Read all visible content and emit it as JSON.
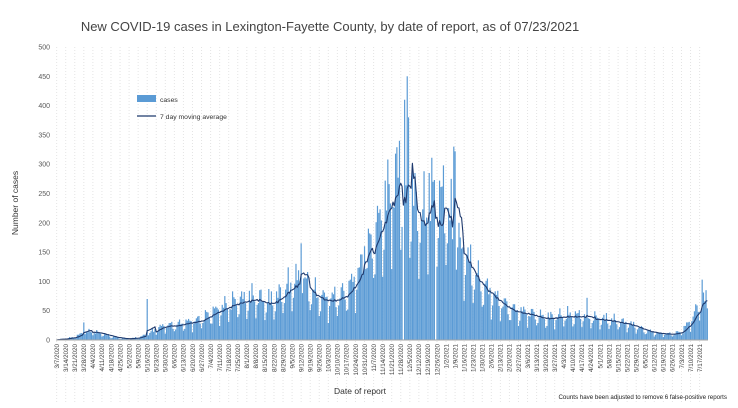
{
  "chart_data": {
    "type": "bar",
    "title": "New COVID-19 cases in Lexington-Fayette County, by date of report, as of 07/23/2021",
    "xlabel": "Date of report",
    "ylabel": "Number of cases",
    "ylim": [
      0,
      500
    ],
    "yticks": [
      0,
      50,
      100,
      150,
      200,
      250,
      300,
      350,
      400,
      450,
      500
    ],
    "grid": false,
    "legend_position": "top-left",
    "footnote": "Counts have been adjusted to remove 6 false-positive reports",
    "x_tick_labels": [
      "3/7/2020",
      "3/14/2020",
      "3/21/2020",
      "3/28/2020",
      "4/4/2020",
      "4/11/2020",
      "4/18/2020",
      "4/25/2020",
      "5/2/2020",
      "5/9/2020",
      "5/16/2020",
      "5/23/2020",
      "5/30/2020",
      "6/6/2020",
      "6/13/2020",
      "6/20/2020",
      "6/27/2020",
      "7/4/2020",
      "7/11/2020",
      "7/18/2020",
      "7/25/2020",
      "8/1/2020",
      "8/8/2020",
      "8/15/2020",
      "8/22/2020",
      "8/29/2020",
      "9/5/2020",
      "9/12/2020",
      "9/19/2020",
      "9/26/2020",
      "10/3/2020",
      "10/10/2020",
      "10/17/2020",
      "10/24/2020",
      "10/31/2020",
      "11/7/2020",
      "11/14/2020",
      "11/21/2020",
      "11/28/2020",
      "12/5/2020",
      "12/12/2020",
      "12/19/2020",
      "12/26/2020",
      "1/2/2021",
      "1/9/2021",
      "1/16/2021",
      "1/23/2021",
      "1/30/2021",
      "2/6/2021",
      "2/13/2021",
      "2/20/2021",
      "2/27/2021",
      "3/6/2021",
      "3/13/2021",
      "3/20/2021",
      "3/27/2021",
      "4/3/2021",
      "4/10/2021",
      "4/17/2021",
      "4/24/2021",
      "5/1/2021",
      "5/8/2021",
      "5/15/2021",
      "5/22/2021",
      "5/29/2021",
      "6/5/2021",
      "6/12/2021",
      "6/19/2021",
      "6/26/2021",
      "7/3/2021",
      "7/10/2021",
      "7/17/2021"
    ],
    "series": [
      {
        "name": "cases",
        "kind": "bar",
        "color": "#5b9bd5",
        "start_date": "2020-03-07",
        "end_date": "2021-07-23",
        "weekly_level": [
          1,
          2,
          5,
          12,
          14,
          10,
          6,
          3,
          2,
          4,
          9,
          18,
          24,
          24,
          28,
          30,
          34,
          44,
          50,
          58,
          64,
          66,
          70,
          62,
          64,
          78,
          92,
          100,
          82,
          70,
          66,
          70,
          78,
          100,
          128,
          165,
          205,
          245,
          260,
          250,
          195,
          205,
          235,
          220,
          160,
          140,
          110,
          90,
          75,
          62,
          52,
          46,
          44,
          40,
          36,
          38,
          40,
          40,
          40,
          36,
          35,
          33,
          30,
          27,
          22,
          16,
          12,
          10,
          10,
          14,
          32,
          58
        ],
        "spikes": {
          "2020-03-28": 30,
          "2020-05-16": 70,
          "2020-09-12": 165,
          "2020-10-31": 160,
          "2020-11-27": 340,
          "2020-12-01": 410,
          "2020-12-03": 450,
          "2020-12-04": 380,
          "2020-12-20": 285,
          "2020-12-23": 270,
          "2021-01-08": 330,
          "2021-01-09": 322,
          "2021-04-21": 72,
          "2021-07-19": 103,
          "2021-07-22": 85
        },
        "zero_dates": [
          "2020-11-30",
          "2020-12-25"
        ]
      },
      {
        "name": "7 day moving average",
        "kind": "line",
        "color": "#1f3a6e"
      }
    ]
  }
}
